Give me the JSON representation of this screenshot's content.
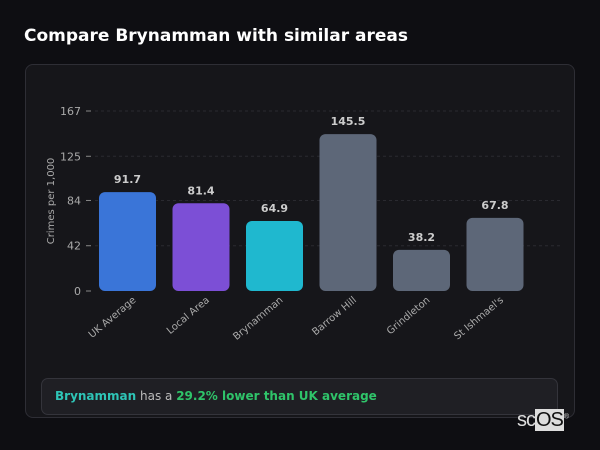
{
  "title": "Compare Brynamman with similar areas",
  "chart_data": {
    "type": "bar",
    "ylabel": "Crimes per 1,000",
    "ylim": [
      0,
      167
    ],
    "yticks": [
      0,
      42,
      84,
      125,
      167
    ],
    "grid": true,
    "categories": [
      "UK Average",
      "Local Area",
      "Brynamman",
      "Barrow Hill",
      "Grindleton",
      "St Ishmael's"
    ],
    "values": [
      91.7,
      81.4,
      64.9,
      145.5,
      38.2,
      67.8
    ],
    "value_labels": [
      "91.7",
      "81.4",
      "64.9",
      "145.5",
      "38.2",
      "67.8"
    ],
    "colors": [
      "#3a75d8",
      "#7c4fd6",
      "#1fb8cf",
      "#5d6778",
      "#5d6778",
      "#5d6778"
    ]
  },
  "summary": {
    "area": "Brynamman",
    "middle": " has a ",
    "comparison": "29.2% lower than UK average"
  },
  "logo": {
    "text": "scOS"
  }
}
